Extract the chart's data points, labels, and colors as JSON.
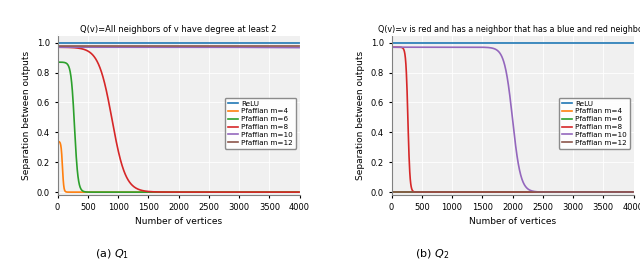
{
  "title1": "Q(v)=All neighbors of v have degree at least 2",
  "title2": "Q(v)=v is red and has a neighbor that has a blue and red neighbor",
  "ylabel": "Separation between outputs",
  "xlabel": "Number of vertices",
  "xlim": [
    0,
    4000
  ],
  "ylim": [
    -0.02,
    1.05
  ],
  "legend_labels": [
    "ReLU",
    "Pfaffian m=4",
    "Pfaffian m=6",
    "Pfaffian m=8",
    "Pfaffian m=10",
    "Pfaffian m=12"
  ],
  "colors": [
    "#1f77b4",
    "#ff7f0e",
    "#2ca02c",
    "#d62728",
    "#9467bd",
    "#8c564b"
  ],
  "xticks": [
    0,
    500,
    1000,
    1500,
    2000,
    2500,
    3000,
    3500,
    4000
  ],
  "yticks": [
    0.0,
    0.2,
    0.4,
    0.6,
    0.8,
    1.0
  ],
  "bg_color": "#f0f0f0"
}
